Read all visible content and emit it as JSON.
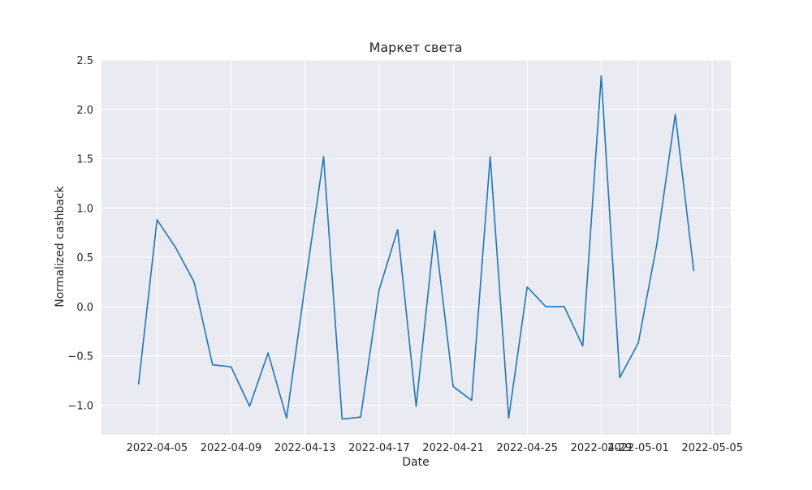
{
  "chart_data": {
    "type": "line",
    "title": "Маркет света",
    "xlabel": "Date",
    "ylabel": "Normalized cashback",
    "x_ticks": [
      "2022-04-05",
      "2022-04-09",
      "2022-04-13",
      "2022-04-17",
      "2022-04-21",
      "2022-04-25",
      "2022-04-29",
      "2022-05-01",
      "2022-05-05"
    ],
    "y_ticks": [
      "−1.0",
      "−0.5",
      "0.0",
      "0.5",
      "1.0",
      "1.5",
      "2.0",
      "2.5"
    ],
    "xlim": [
      "2022-04-02",
      "2022-05-06"
    ],
    "ylim": [
      -1.3,
      2.5
    ],
    "grid": true,
    "colors": {
      "line": "#1f77b4",
      "background": "#eaeaf2",
      "grid": "#ffffff"
    },
    "series": [
      {
        "x": [
          "2022-04-04",
          "2022-04-05",
          "2022-04-06",
          "2022-04-07",
          "2022-04-08",
          "2022-04-09",
          "2022-04-10",
          "2022-04-11",
          "2022-04-12",
          "2022-04-13",
          "2022-04-14",
          "2022-04-15",
          "2022-04-16",
          "2022-04-17",
          "2022-04-18",
          "2022-04-19",
          "2022-04-20",
          "2022-04-21",
          "2022-04-22",
          "2022-04-23",
          "2022-04-24",
          "2022-04-25",
          "2022-04-26",
          "2022-04-27",
          "2022-04-28",
          "2022-04-29",
          "2022-04-30",
          "2022-05-01",
          "2022-05-02",
          "2022-05-03",
          "2022-05-04"
        ],
        "values": [
          -0.79,
          0.88,
          0.6,
          0.25,
          -0.59,
          -0.61,
          -1.01,
          -0.47,
          -1.13,
          0.22,
          1.52,
          -1.14,
          -1.12,
          0.17,
          0.78,
          -1.01,
          0.77,
          -0.81,
          -0.95,
          1.52,
          -1.13,
          0.2,
          0.0,
          0.0,
          -0.4,
          2.34,
          -0.72,
          -0.37,
          0.63,
          1.95,
          0.36
        ]
      }
    ]
  }
}
